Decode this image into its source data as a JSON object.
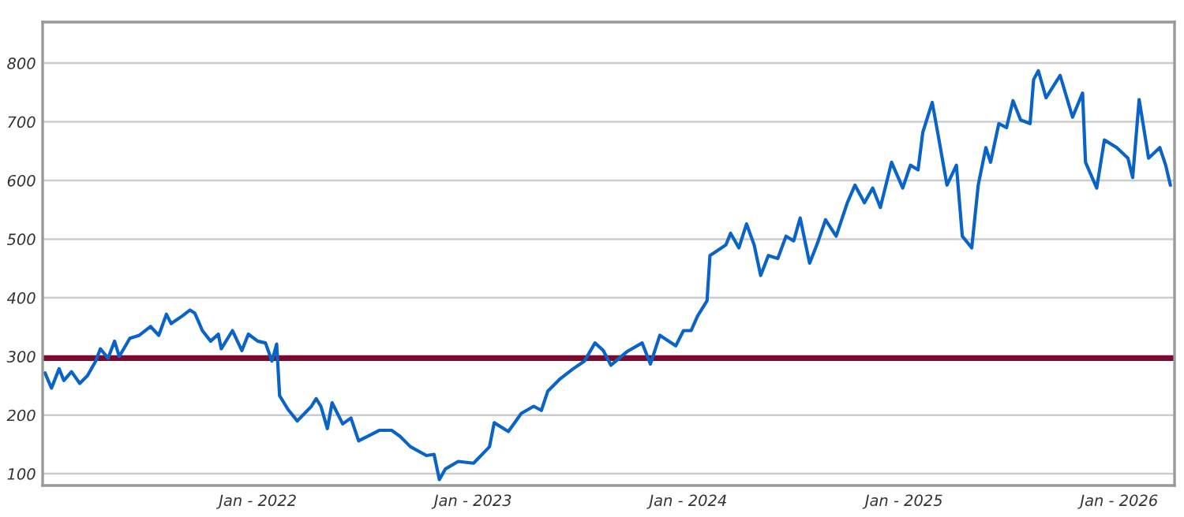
{
  "chart_data": {
    "type": "line",
    "x": [
      "2021-01-05",
      "2021-01-16",
      "2021-01-29",
      "2021-02-06",
      "2021-02-19",
      "2021-03-05",
      "2021-03-18",
      "2021-04-01",
      "2021-04-09",
      "2021-04-22",
      "2021-05-03",
      "2021-05-11",
      "2021-05-29",
      "2021-06-14",
      "2021-07-03",
      "2021-07-17",
      "2021-07-30",
      "2021-08-07",
      "2021-08-26",
      "2021-09-08",
      "2021-09-16",
      "2021-09-29",
      "2021-10-13",
      "2021-10-26",
      "2021-10-31",
      "2021-11-19",
      "2021-12-05",
      "2021-12-16",
      "2022-01-01",
      "2022-01-14",
      "2022-01-25",
      "2022-02-02",
      "2022-02-07",
      "2022-02-21",
      "2022-03-09",
      "2022-04-02",
      "2022-04-10",
      "2022-04-18",
      "2022-04-29",
      "2022-05-07",
      "2022-05-25",
      "2022-06-08",
      "2022-06-21",
      "2022-07-07",
      "2022-07-26",
      "2022-08-16",
      "2022-08-30",
      "2022-09-17",
      "2022-10-14",
      "2022-10-27",
      "2022-11-05",
      "2022-11-15",
      "2022-12-07",
      "2023-01-02",
      "2023-01-29",
      "2023-02-06",
      "2023-03-02",
      "2023-03-24",
      "2023-04-14",
      "2023-04-27",
      "2023-05-08",
      "2023-05-29",
      "2023-06-20",
      "2023-07-09",
      "2023-07-27",
      "2023-08-10",
      "2023-08-23",
      "2023-09-19",
      "2023-10-15",
      "2023-10-29",
      "2023-11-14",
      "2023-12-11",
      "2023-12-24",
      "2024-01-06",
      "2024-01-17",
      "2024-02-02",
      "2024-02-07",
      "2024-03-05",
      "2024-03-13",
      "2024-03-27",
      "2024-04-09",
      "2024-04-22",
      "2024-05-03",
      "2024-05-16",
      "2024-06-01",
      "2024-06-15",
      "2024-06-28",
      "2024-07-09",
      "2024-07-25",
      "2024-08-07",
      "2024-08-21",
      "2024-09-08",
      "2024-09-27",
      "2024-10-10",
      "2024-10-26",
      "2024-11-09",
      "2024-11-22",
      "2024-12-11",
      "2024-12-30",
      "2025-01-12",
      "2025-01-25",
      "2025-02-02",
      "2025-02-18",
      "2025-03-01",
      "2025-03-15",
      "2025-03-31",
      "2025-04-10",
      "2025-04-26",
      "2025-05-07",
      "2025-05-20",
      "2025-05-28",
      "2025-06-11",
      "2025-06-24",
      "2025-07-05",
      "2025-07-18",
      "2025-08-03",
      "2025-08-09",
      "2025-08-17",
      "2025-08-30",
      "2025-09-23",
      "2025-10-14",
      "2025-10-31",
      "2025-11-05",
      "2025-11-24",
      "2025-12-07",
      "2025-12-28",
      "2026-01-16",
      "2026-01-24",
      "2026-02-04",
      "2026-02-20",
      "2026-03-11",
      "2026-03-21",
      "2026-03-29"
    ],
    "series": [
      {
        "color": "#0a64c8",
        "values": [
          272,
          246,
          279,
          259,
          274,
          254,
          267,
          292,
          313,
          297,
          326,
          300,
          331,
          336,
          351,
          336,
          372,
          356,
          369,
          379,
          374,
          344,
          326,
          338,
          313,
          344,
          310,
          338,
          326,
          323,
          292,
          321,
          233,
          210,
          190,
          215,
          228,
          215,
          177,
          221,
          185,
          195,
          156,
          164,
          174,
          174,
          164,
          146,
          131,
          133,
          90,
          108,
          121,
          118,
          146,
          187,
          172,
          203,
          215,
          208,
          241,
          262,
          279,
          292,
          323,
          310,
          285,
          308,
          323,
          287,
          336,
          318,
          344,
          344,
          369,
          395,
          472,
          490,
          510,
          485,
          526,
          490,
          438,
          472,
          467,
          505,
          497,
          536,
          459,
          492,
          533,
          505,
          562,
          592,
          562,
          587,
          554,
          631,
          587,
          626,
          618,
          682,
          733,
          672,
          592,
          626,
          505,
          485,
          592,
          656,
          631,
          697,
          690,
          736,
          703,
          697,
          772,
          787,
          741,
          779,
          708,
          749,
          631,
          587,
          669,
          656,
          638,
          605,
          738,
          638,
          656,
          626,
          592
        ]
      }
    ],
    "xlim": [
      "2021-01-01",
      "2026-04-05"
    ],
    "xticks": [
      {
        "value": "2022-01-01",
        "label": "Jan - 2022"
      },
      {
        "value": "2023-01-01",
        "label": "Jan - 2023"
      },
      {
        "value": "2024-01-01",
        "label": "Jan - 2024"
      },
      {
        "value": "2025-01-01",
        "label": "Jan - 2025"
      },
      {
        "value": "2026-01-01",
        "label": "Jan - 2026"
      }
    ],
    "ylim": [
      80,
      870
    ],
    "yticks": [
      100,
      200,
      300,
      400,
      500,
      600,
      700,
      800
    ],
    "grid": "y",
    "ref_lines": [
      {
        "axis": "y",
        "value": 297,
        "color": "#7a0a2e"
      }
    ],
    "legend": false,
    "marker": "none",
    "line_style": "solid"
  }
}
